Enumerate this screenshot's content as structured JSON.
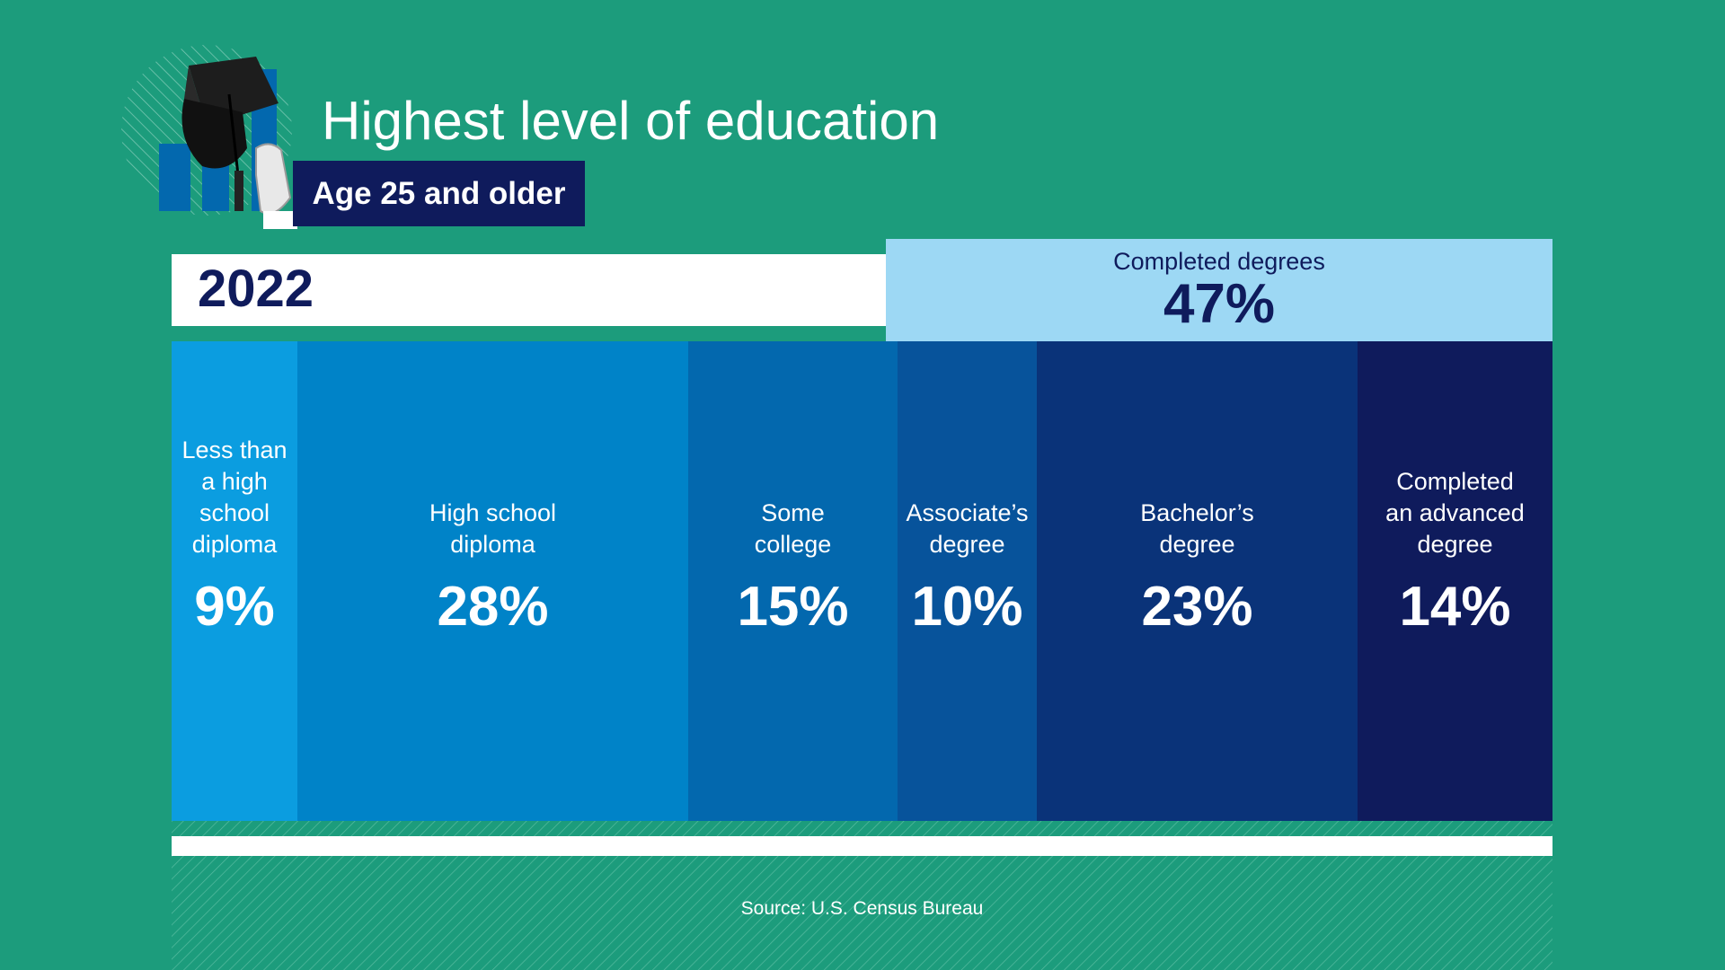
{
  "chart_data": {
    "type": "bar",
    "title": "Highest level of education",
    "subtitle": "Age 25 and older",
    "year": "2022",
    "group": {
      "label": "Completed degrees",
      "value": "47%"
    },
    "categories": [
      "Less than a high school diploma",
      "High school diploma",
      "Some college",
      "Associate’s degree",
      "Bachelor’s degree",
      "Completed an advanced degree"
    ],
    "label_lines": [
      [
        "Less than",
        "a high",
        "school",
        "diploma"
      ],
      [
        "High school",
        "diploma"
      ],
      [
        "Some",
        "college"
      ],
      [
        "Associate’s",
        "degree"
      ],
      [
        "Bachelor’s",
        "degree"
      ],
      [
        "Completed",
        "an advanced",
        "degree"
      ]
    ],
    "values": [
      9,
      28,
      15,
      10,
      23,
      14
    ],
    "value_labels": [
      "9%",
      "28%",
      "15%",
      "10%",
      "23%",
      "14%"
    ],
    "unit": "%"
  },
  "colors": {
    "background": "#1c9c7c",
    "navy": "#0f1b5c",
    "light_blue": "#9dd8f4",
    "bars": [
      "#0b9de0",
      "#0083c8",
      "#0368ae",
      "#07539b",
      "#0a3379",
      "#0f1b5c"
    ]
  },
  "footer": {
    "source": "Source: U.S. Census Bureau"
  },
  "icons": {
    "header": "graduation-cap-icon"
  }
}
